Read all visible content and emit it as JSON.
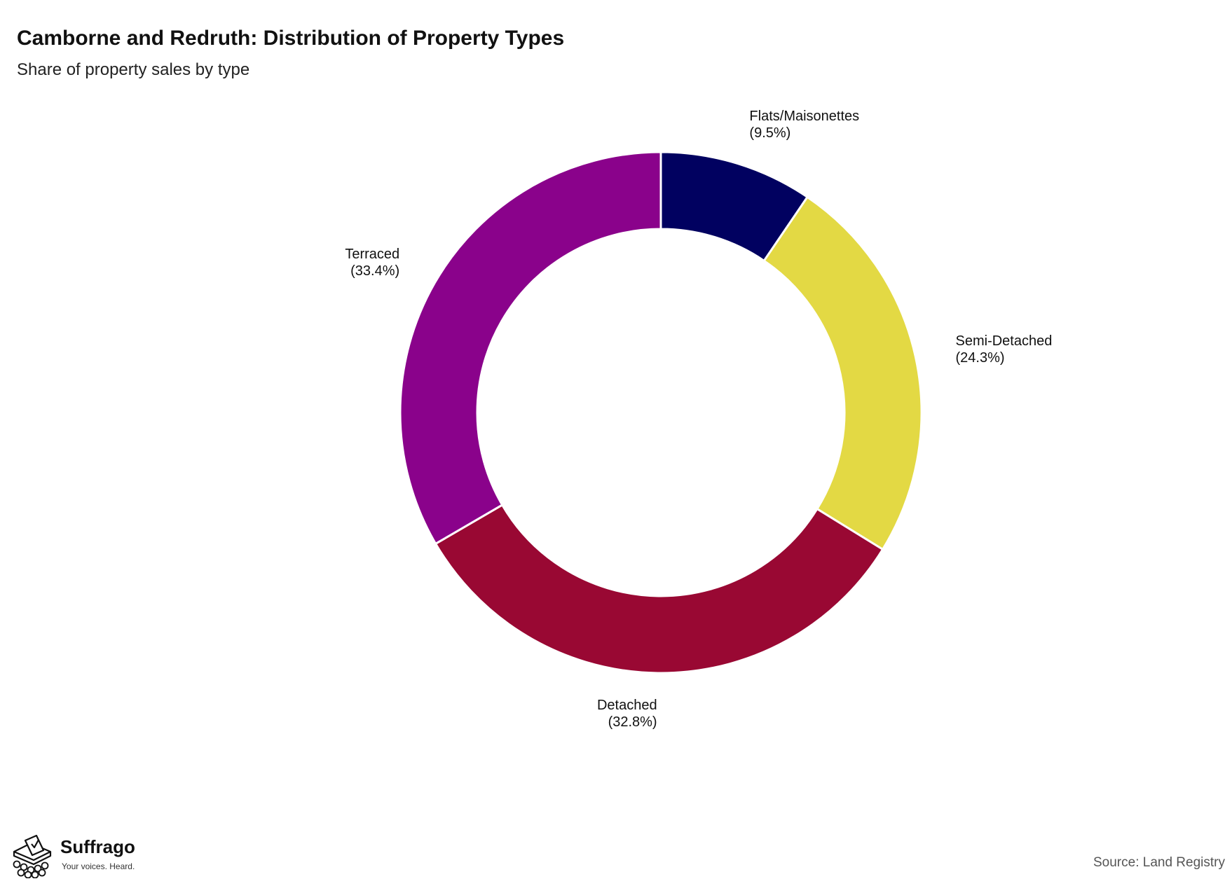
{
  "header": {
    "title": "Camborne and Redruth: Distribution of Property Types",
    "subtitle": "Share of property sales by type"
  },
  "footer": {
    "brand_name": "Suffrago",
    "brand_tagline": "Your voices. Heard.",
    "source": "Source: Land Registry"
  },
  "chart_data": {
    "type": "pie",
    "style": "donut",
    "title": "Camborne and Redruth: Distribution of Property Types",
    "subtitle": "Share of property sales by type",
    "slices": [
      {
        "label": "Flats/Maisonettes",
        "value": 9.5,
        "display": "(9.5%)",
        "color": "#010160"
      },
      {
        "label": "Semi-Detached",
        "value": 24.3,
        "display": "(24.3%)",
        "color": "#e3d944"
      },
      {
        "label": "Detached",
        "value": 32.8,
        "display": "(32.8%)",
        "color": "#990833"
      },
      {
        "label": "Terraced",
        "value": 33.4,
        "display": "(33.4%)",
        "color": "#8a028b"
      }
    ],
    "start": "12 o'clock",
    "direction": "clockwise",
    "legend": "none (direct labels)"
  }
}
